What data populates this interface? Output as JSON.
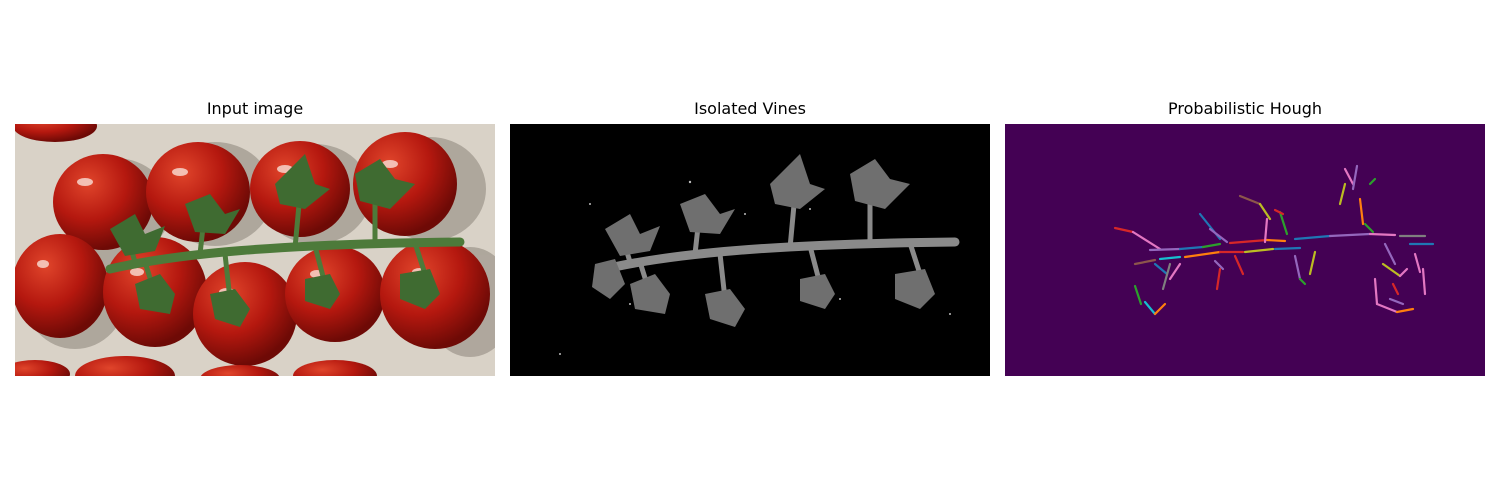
{
  "panels": [
    {
      "id": "input",
      "title": "Input image"
    },
    {
      "id": "isolated",
      "title": "Isolated Vines"
    },
    {
      "id": "hough",
      "title": "Probabilistic Hough"
    }
  ],
  "colors": {
    "background_input": "#d9d2c7",
    "tomato": "#b5180f",
    "vine_green": "#4d7a3a",
    "isolated_bg": "#000000",
    "vine_gray": "#8a8a8a",
    "hough_bg": "#440154",
    "segment_palette": [
      "#1f77b4",
      "#ff7f0e",
      "#2ca02c",
      "#d62728",
      "#9467bd",
      "#8c564b",
      "#e377c2",
      "#bcbd22",
      "#17becf",
      "#7f7f7f"
    ]
  }
}
